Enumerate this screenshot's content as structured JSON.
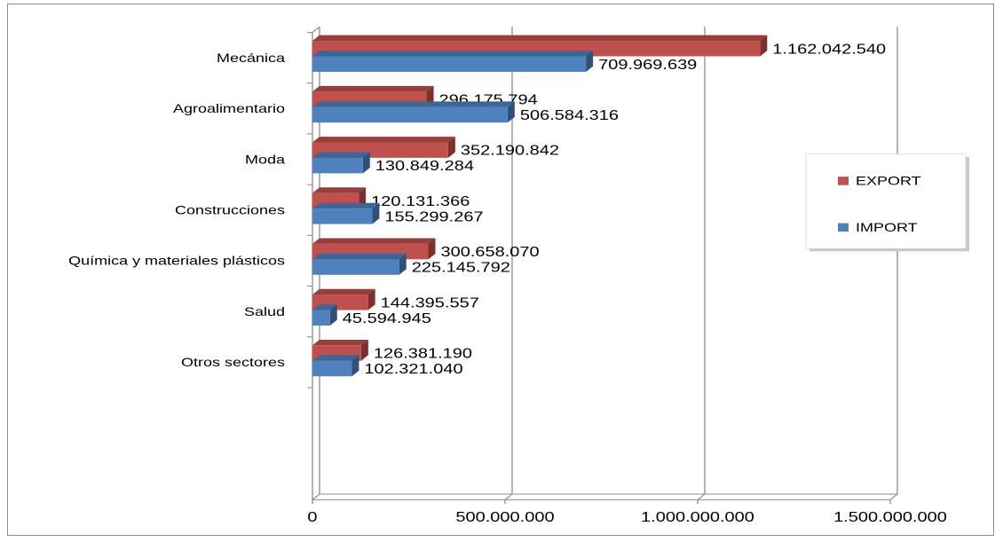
{
  "chart_data": {
    "type": "bar",
    "orientation": "horizontal",
    "three_d": true,
    "categories": [
      "Mecánica",
      "Agroalimentario",
      "Moda",
      "Construcciones",
      "Química y materiales plásticos",
      "Salud",
      "Otros sectores"
    ],
    "series": [
      {
        "name": "EXPORT",
        "color": "#c0504d",
        "values": [
          1162042540,
          296175794,
          352190842,
          120131366,
          300658070,
          144395557,
          126381190
        ],
        "labels": [
          "1.162.042.540",
          "296.175.794",
          "352.190.842",
          "120.131.366",
          "300.658.070",
          "144.395.557",
          "126.381.190"
        ]
      },
      {
        "name": "IMPORT",
        "color": "#4f81bd",
        "values": [
          709969639,
          506584316,
          130849284,
          155299267,
          225145792,
          45594945,
          102321040
        ],
        "labels": [
          "709.969.639",
          "506.584.316",
          "130.849.284",
          "155.299.267",
          "225.145.792",
          "45.594.945",
          "102.321.040"
        ]
      }
    ],
    "x_ticks": [
      0,
      500000000,
      1000000000,
      1500000000
    ],
    "x_tick_labels": [
      "0",
      "500.000.000",
      "1.000.000.000",
      "1.500.000.000"
    ],
    "xlim": [
      0,
      1500000000
    ],
    "grid": true,
    "legend_position": "right",
    "title": "",
    "xlabel": "",
    "ylabel": ""
  }
}
